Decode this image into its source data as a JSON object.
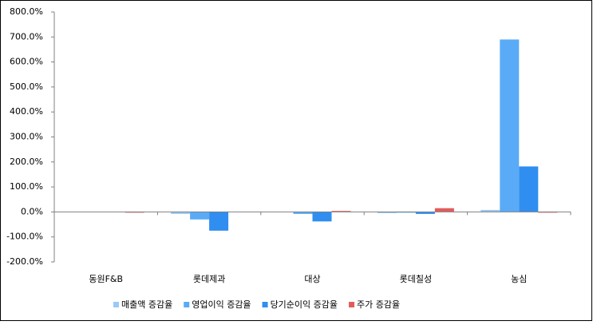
{
  "chart_data": {
    "type": "bar",
    "categories": [
      "동원F&B",
      "롯데제과",
      "대상",
      "롯데칠성",
      "농심"
    ],
    "series": [
      {
        "name": "매출액 증감율",
        "color": "#99c9f5",
        "values": [
          1,
          -8,
          1,
          -5,
          8
        ]
      },
      {
        "name": "영업이익 증감율",
        "color": "#5aabf7",
        "values": [
          0,
          -30,
          -8,
          -3,
          690
        ]
      },
      {
        "name": "당기순이익 증감율",
        "color": "#2f8ef0",
        "values": [
          0,
          -75,
          -38,
          -8,
          182
        ]
      },
      {
        "name": "주가 증감율",
        "color": "#e25c5c",
        "values": [
          -3,
          0,
          4,
          15,
          -3
        ]
      }
    ],
    "ylim": [
      -200,
      800
    ],
    "yticks": [
      {
        "value": -200,
        "label": "-200.0%"
      },
      {
        "value": -100,
        "label": "-100.0%"
      },
      {
        "value": 0,
        "label": "0.0%"
      },
      {
        "value": 100,
        "label": "100.0%"
      },
      {
        "value": 200,
        "label": "200.0%"
      },
      {
        "value": 300,
        "label": "300.0%"
      },
      {
        "value": 400,
        "label": "400.0%"
      },
      {
        "value": 500,
        "label": "500.0%"
      },
      {
        "value": 600,
        "label": "600.0%"
      },
      {
        "value": 700,
        "label": "700.0%"
      },
      {
        "value": 800,
        "label": "800.0%"
      }
    ],
    "legend": "bottom"
  }
}
